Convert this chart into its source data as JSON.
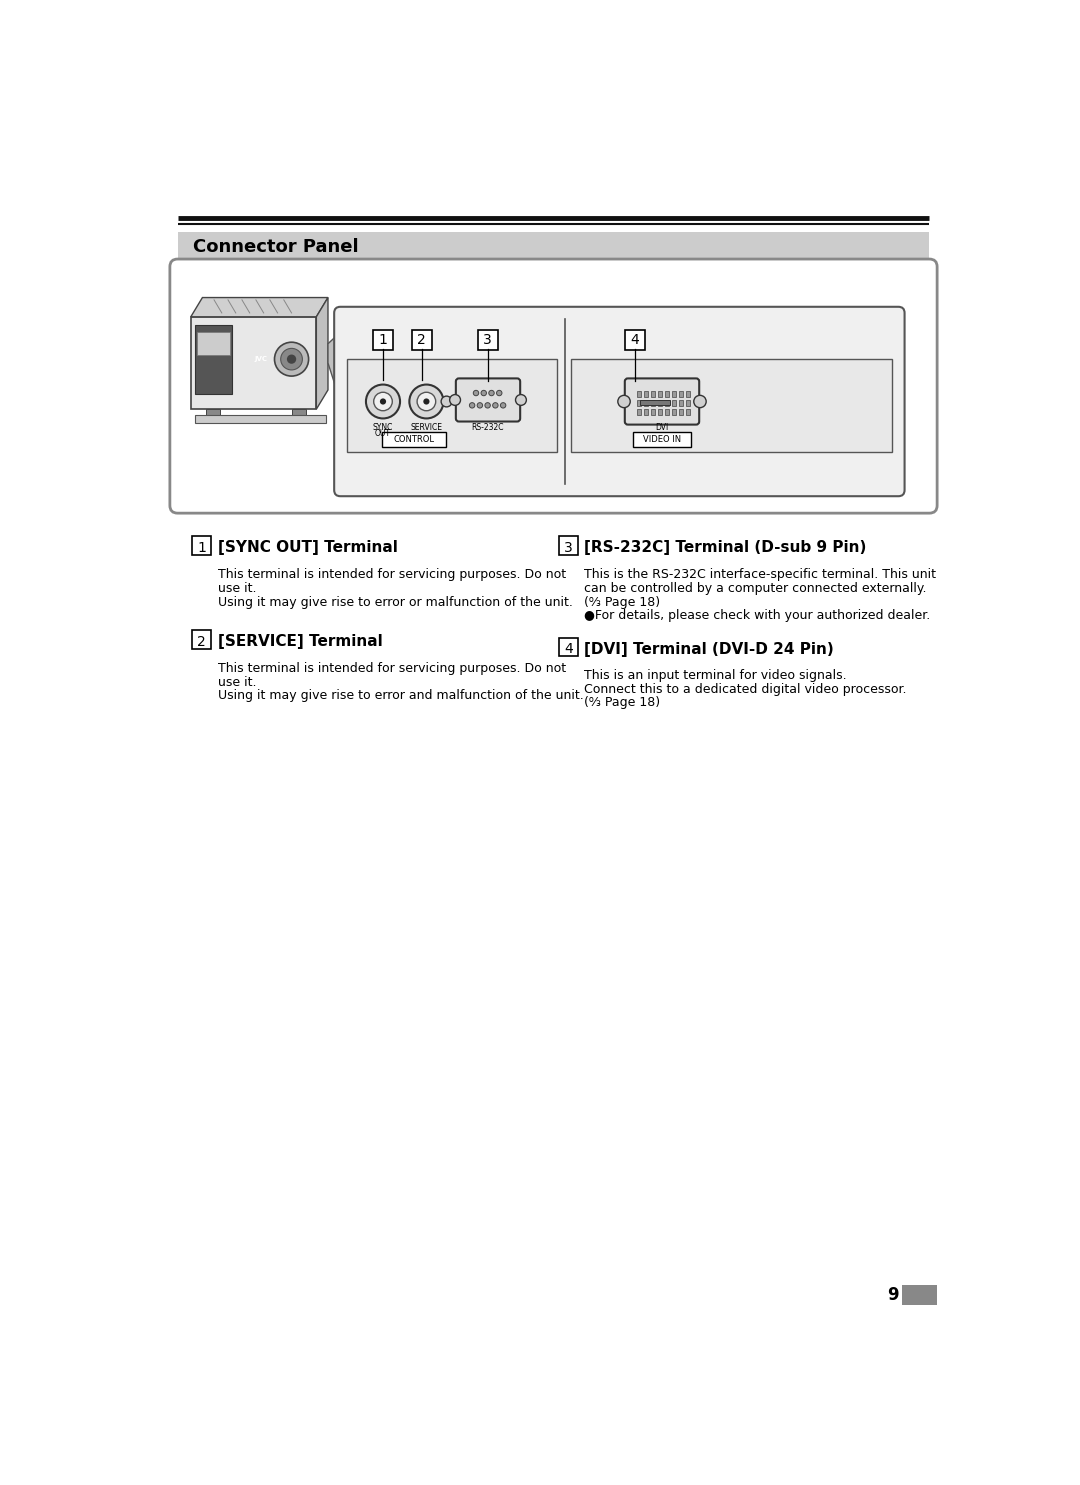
{
  "title": "Connector Panel",
  "bg_color": "#ffffff",
  "header_bar_color": "#cccccc",
  "double_line_color": "#000000",
  "section1_num": "1",
  "section1_heading": "[SYNC OUT] Terminal",
  "section1_text1": "This terminal is intended for servicing purposes. Do not",
  "section1_text2": "use it.",
  "section1_text3": "Using it may give rise to error or malfunction of the unit.",
  "section2_num": "2",
  "section2_heading": "[SERVICE] Terminal",
  "section2_text1": "This terminal is intended for servicing purposes. Do not",
  "section2_text2": "use it.",
  "section2_text3": "Using it may give rise to error and malfunction of the unit.",
  "section3_num": "3",
  "section3_heading": "[RS-232C] Terminal (D-sub 9 Pin)",
  "section3_text1": "This is the RS-232C interface-specific terminal. This unit",
  "section3_text2": "can be controlled by a computer connected externally.",
  "section3_text3": "(↉ Page 18)",
  "section3_text4": "●For details, please check with your authorized dealer.",
  "section4_num": "4",
  "section4_heading": "[DVI] Terminal (DVI-D 24 Pin)",
  "section4_text1": "This is an input terminal for video signals.",
  "section4_text2": "Connect this to a dedicated digital video processor.",
  "section4_text3": "(↉ Page 18)",
  "page_number": "9",
  "control_label": "CONTROL",
  "videoin_label": "VIDEO IN",
  "callout_numbers": [
    "1",
    "2",
    "3",
    "4"
  ],
  "label_sync": "SYNC\nOUT",
  "label_service": "SERVICE",
  "label_rs232c": "RS-232C",
  "label_dvi": "DVI"
}
